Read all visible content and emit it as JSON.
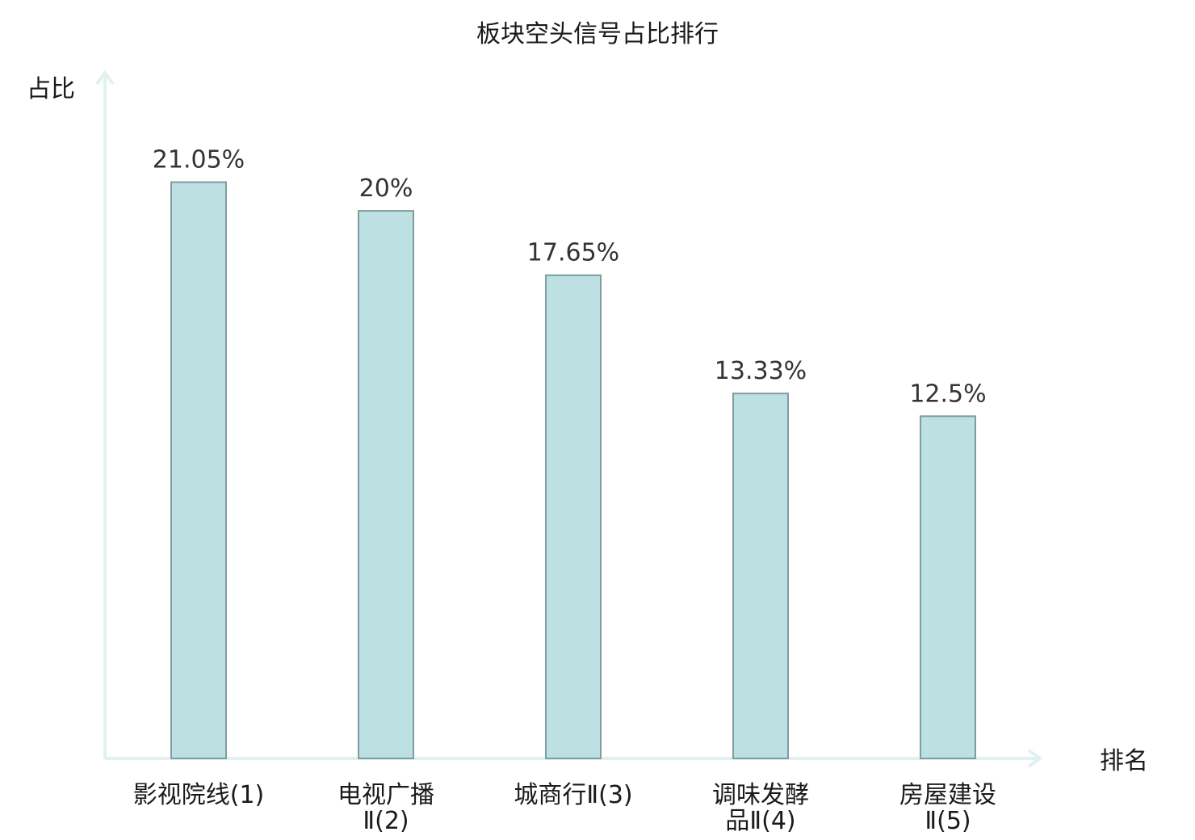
{
  "chart_data": {
    "type": "bar",
    "title": "板块空头信号占比排行",
    "ylabel": "占比",
    "xlabel": "排名",
    "categories": [
      {
        "name": "影视院线",
        "rank": "(1)",
        "lines": [
          "影视院线(1)"
        ],
        "highlight": true
      },
      {
        "name": "电视广播Ⅱ",
        "rank": "(2)",
        "lines": [
          "电视广播",
          "Ⅱ(2)"
        ],
        "highlight": false
      },
      {
        "name": "城商行Ⅱ",
        "rank": "(3)",
        "lines": [
          "城商行Ⅱ(3)"
        ],
        "highlight": false
      },
      {
        "name": "调味发酵品Ⅱ",
        "rank": "(4)",
        "lines": [
          "调味发酵",
          "品Ⅱ(4)"
        ],
        "highlight": false
      },
      {
        "name": "房屋建设Ⅱ",
        "rank": "(5)",
        "lines": [
          "房屋建设",
          "Ⅱ(5)"
        ],
        "highlight": false
      }
    ],
    "values": [
      21.05,
      20,
      17.65,
      13.33,
      12.5
    ],
    "value_labels": [
      "21.05%",
      "20%",
      "17.65%",
      "13.33%",
      "12.5%"
    ],
    "ylim": [
      0,
      24
    ],
    "grid": false,
    "colors": {
      "bar_fill": "#bde0e2",
      "bar_stroke": "#7f9d9f",
      "axis": "#e0f2f0",
      "highlight_text": "#e02020",
      "text": "#1a1a1a",
      "value_text": "#333333"
    }
  }
}
